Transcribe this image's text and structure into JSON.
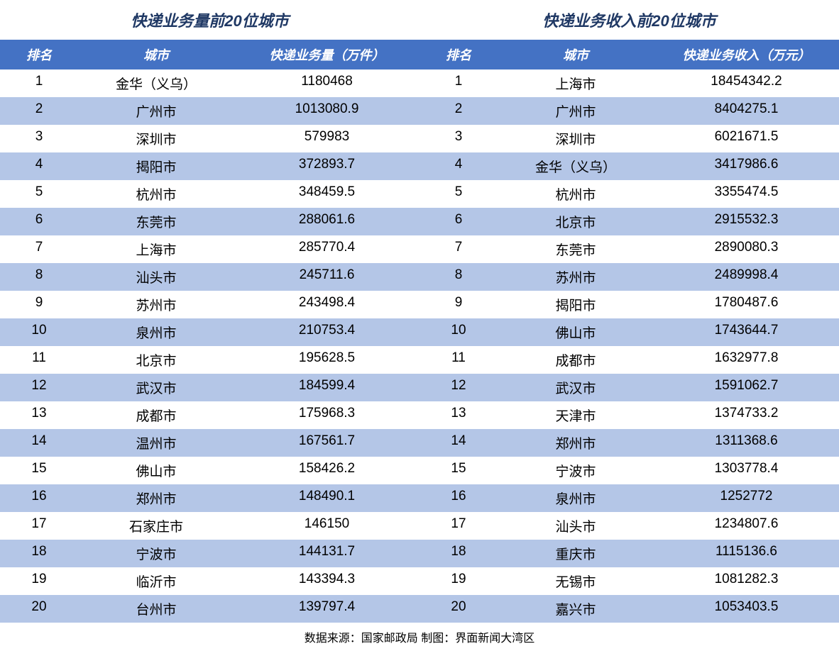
{
  "left_table": {
    "title": "快递业务量前20位城市",
    "columns": [
      "排名",
      "城市",
      "快递业务量（万件）"
    ],
    "rows": [
      [
        "1",
        "金华（义乌）",
        "1180468"
      ],
      [
        "2",
        "广州市",
        "1013080.9"
      ],
      [
        "3",
        "深圳市",
        "579983"
      ],
      [
        "4",
        "揭阳市",
        "372893.7"
      ],
      [
        "5",
        "杭州市",
        "348459.5"
      ],
      [
        "6",
        "东莞市",
        "288061.6"
      ],
      [
        "7",
        "上海市",
        "285770.4"
      ],
      [
        "8",
        "汕头市",
        "245711.6"
      ],
      [
        "9",
        "苏州市",
        "243498.4"
      ],
      [
        "10",
        "泉州市",
        "210753.4"
      ],
      [
        "11",
        "北京市",
        "195628.5"
      ],
      [
        "12",
        "武汉市",
        "184599.4"
      ],
      [
        "13",
        "成都市",
        "175968.3"
      ],
      [
        "14",
        "温州市",
        "167561.7"
      ],
      [
        "15",
        "佛山市",
        "158426.2"
      ],
      [
        "16",
        "郑州市",
        "148490.1"
      ],
      [
        "17",
        "石家庄市",
        "146150"
      ],
      [
        "18",
        "宁波市",
        "144131.7"
      ],
      [
        "19",
        "临沂市",
        "143394.3"
      ],
      [
        "20",
        "台州市",
        "139797.4"
      ]
    ]
  },
  "right_table": {
    "title": "快递业务收入前20位城市",
    "columns": [
      "排名",
      "城市",
      "快递业务收入（万元）"
    ],
    "rows": [
      [
        "1",
        "上海市",
        "18454342.2"
      ],
      [
        "2",
        "广州市",
        "8404275.1"
      ],
      [
        "3",
        "深圳市",
        "6021671.5"
      ],
      [
        "4",
        "金华（义乌）",
        "3417986.6"
      ],
      [
        "5",
        "杭州市",
        "3355474.5"
      ],
      [
        "6",
        "北京市",
        "2915532.3"
      ],
      [
        "7",
        "东莞市",
        "2890080.3"
      ],
      [
        "8",
        "苏州市",
        "2489998.4"
      ],
      [
        "9",
        "揭阳市",
        "1780487.6"
      ],
      [
        "10",
        "佛山市",
        "1743644.7"
      ],
      [
        "11",
        "成都市",
        "1632977.8"
      ],
      [
        "12",
        "武汉市",
        "1591062.7"
      ],
      [
        "13",
        "天津市",
        "1374733.2"
      ],
      [
        "14",
        "郑州市",
        "1311368.6"
      ],
      [
        "15",
        "宁波市",
        "1303778.4"
      ],
      [
        "16",
        "泉州市",
        "1252772"
      ],
      [
        "17",
        "汕头市",
        "1234807.6"
      ],
      [
        "18",
        "重庆市",
        "1115136.6"
      ],
      [
        "19",
        "无锡市",
        "1081282.3"
      ],
      [
        "20",
        "嘉兴市",
        "1053403.5"
      ]
    ]
  },
  "footer": "数据来源：国家邮政局 制图：界面新闻大湾区",
  "styling": {
    "header_bg": "#4472c4",
    "header_text": "#ffffff",
    "row_odd_bg": "#ffffff",
    "row_even_bg": "#b4c6e7",
    "title_color": "#1f3864",
    "text_color": "#000000",
    "title_fontsize": 22,
    "header_fontsize": 18,
    "row_fontsize": 19,
    "footer_fontsize": 16
  }
}
